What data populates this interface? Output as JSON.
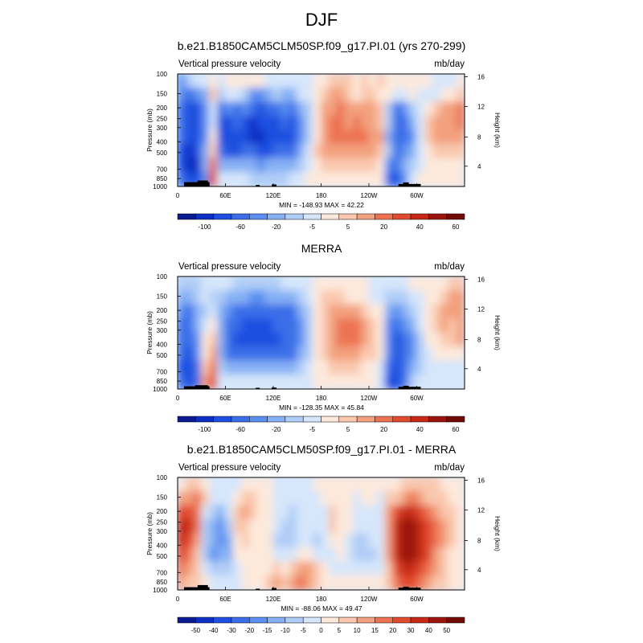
{
  "page_title": "DJF",
  "chart_data": [
    {
      "type": "heatmap",
      "title": "b.e21.B1850CAM5CLM50SP.f09_g17.PI.01 (yrs 270-299)",
      "left_label": "Vertical pressure velocity",
      "right_label": "mb/day",
      "ylabel": "Pressure (mb)",
      "ylabel_right": "Height (km)",
      "x_ticks": [
        "0",
        "60E",
        "120E",
        "180",
        "120W",
        "60W"
      ],
      "y_ticks": [
        "100",
        "150",
        "200",
        "250",
        "300",
        "400",
        "500",
        "700",
        "850",
        "1000"
      ],
      "y_ticks_right": [
        "4",
        "8",
        "12",
        "16"
      ],
      "stats": "MIN = -148.93  MAX =  42.22",
      "min": -148.93,
      "max": 42.22,
      "colorbar_labels": [
        "-100",
        "-60",
        "-20",
        "-5",
        "5",
        "20",
        "40",
        "60"
      ],
      "colorbar_colors": [
        "#0a1a90",
        "#0d2fc4",
        "#1f4fe0",
        "#3a6ee8",
        "#5b8ff0",
        "#86b0f4",
        "#b0cdf7",
        "#d6e6fb",
        "#fde9dc",
        "#f9c8ae",
        "#f3a07e",
        "#ec7352",
        "#e14a2e",
        "#c62a17",
        "#9a150b",
        "#700b05"
      ],
      "field": [
        [
          4,
          6,
          7,
          7,
          8,
          7,
          8,
          8,
          8,
          8,
          8,
          7,
          7,
          7,
          7,
          7,
          7,
          8,
          8,
          9,
          9,
          9,
          8,
          9,
          8,
          9,
          8,
          8,
          8,
          8,
          8,
          8,
          7,
          7,
          7,
          8
        ],
        [
          4,
          3,
          4,
          5,
          9,
          6,
          7,
          7,
          6,
          4,
          4,
          5,
          6,
          5,
          5,
          7,
          7,
          8,
          9,
          10,
          10,
          9,
          8,
          9,
          9,
          8,
          8,
          7,
          7,
          8,
          7,
          7,
          7,
          8,
          8,
          9
        ],
        [
          3,
          2,
          2,
          4,
          7,
          3,
          4,
          3,
          4,
          3,
          2,
          3,
          3,
          4,
          3,
          5,
          6,
          8,
          10,
          10,
          11,
          10,
          10,
          10,
          10,
          9,
          6,
          3,
          4,
          6,
          7,
          8,
          9,
          10,
          10,
          11
        ],
        [
          3,
          2,
          2,
          4,
          7,
          2,
          2,
          3,
          2,
          1,
          2,
          2,
          2,
          3,
          2,
          4,
          6,
          8,
          10,
          11,
          11,
          10,
          11,
          10,
          10,
          9,
          6,
          3,
          3,
          5,
          7,
          9,
          10,
          10,
          10,
          11
        ],
        [
          3,
          2,
          2,
          4,
          8,
          2,
          2,
          2,
          2,
          1,
          1,
          2,
          2,
          2,
          2,
          4,
          6,
          8,
          10,
          11,
          11,
          11,
          11,
          11,
          10,
          10,
          5,
          3,
          3,
          4,
          7,
          9,
          10,
          10,
          10,
          10
        ],
        [
          2,
          1,
          2,
          5,
          9,
          3,
          2,
          2,
          3,
          3,
          2,
          2,
          3,
          3,
          3,
          5,
          7,
          9,
          10,
          10,
          10,
          10,
          10,
          10,
          10,
          9,
          6,
          3,
          4,
          5,
          7,
          8,
          9,
          9,
          9,
          9
        ],
        [
          2,
          1,
          1,
          5,
          11,
          5,
          5,
          5,
          5,
          5,
          4,
          5,
          5,
          5,
          5,
          6,
          7,
          8,
          9,
          9,
          9,
          9,
          9,
          9,
          9,
          8,
          4,
          3,
          5,
          6,
          7,
          8,
          8,
          8,
          8,
          8
        ],
        [
          3,
          2,
          2,
          4,
          12,
          7,
          7,
          7,
          7,
          6,
          6,
          6,
          6,
          6,
          7,
          7,
          8,
          8,
          8,
          8,
          8,
          8,
          8,
          8,
          8,
          8,
          3,
          2,
          4,
          7,
          8,
          8,
          8,
          8,
          8,
          8
        ]
      ]
    },
    {
      "type": "heatmap",
      "title": "MERRA",
      "left_label": "Vertical pressure velocity",
      "right_label": "mb/day",
      "ylabel": "Pressure (mb)",
      "ylabel_right": "Height (km)",
      "x_ticks": [
        "0",
        "60E",
        "120E",
        "180",
        "120W",
        "60W"
      ],
      "y_ticks": [
        "100",
        "150",
        "200",
        "250",
        "300",
        "400",
        "500",
        "700",
        "850",
        "1000"
      ],
      "y_ticks_right": [
        "4",
        "8",
        "12",
        "16"
      ],
      "stats": "MIN = -128.35  MAX =  45.84",
      "min": -128.35,
      "max": 45.84,
      "colorbar_labels": [
        "-100",
        "-60",
        "-20",
        "-5",
        "5",
        "20",
        "40",
        "60"
      ],
      "colorbar_colors": [
        "#0a1a90",
        "#0d2fc4",
        "#1f4fe0",
        "#3a6ee8",
        "#5b8ff0",
        "#86b0f4",
        "#b0cdf7",
        "#d6e6fb",
        "#fde9dc",
        "#f9c8ae",
        "#f3a07e",
        "#ec7352",
        "#e14a2e",
        "#c62a17",
        "#9a150b",
        "#700b05"
      ],
      "field": [
        [
          6,
          6,
          6,
          7,
          7,
          7,
          7,
          6,
          6,
          6,
          6,
          6,
          6,
          7,
          7,
          7,
          7,
          8,
          8,
          8,
          8,
          8,
          8,
          8,
          7,
          7,
          7,
          7,
          7,
          8,
          8,
          8,
          8,
          8,
          9,
          9
        ],
        [
          5,
          5,
          6,
          7,
          6,
          6,
          5,
          5,
          5,
          4,
          4,
          5,
          5,
          5,
          5,
          6,
          7,
          8,
          9,
          9,
          9,
          8,
          8,
          8,
          7,
          7,
          6,
          6,
          6,
          7,
          7,
          8,
          8,
          9,
          10,
          10
        ],
        [
          4,
          3,
          5,
          6,
          7,
          5,
          4,
          3,
          3,
          3,
          3,
          3,
          3,
          3,
          3,
          5,
          6,
          8,
          9,
          10,
          10,
          10,
          10,
          9,
          8,
          8,
          5,
          4,
          5,
          6,
          7,
          8,
          9,
          10,
          10,
          10
        ],
        [
          3,
          3,
          5,
          7,
          8,
          5,
          3,
          3,
          2,
          2,
          2,
          2,
          3,
          3,
          3,
          4,
          6,
          8,
          9,
          10,
          11,
          11,
          11,
          10,
          9,
          8,
          4,
          3,
          4,
          5,
          7,
          8,
          9,
          10,
          9,
          10
        ],
        [
          3,
          3,
          4,
          8,
          9,
          5,
          3,
          2,
          2,
          2,
          2,
          2,
          2,
          3,
          3,
          4,
          6,
          8,
          9,
          10,
          11,
          11,
          11,
          10,
          9,
          8,
          4,
          2,
          3,
          4,
          6,
          8,
          8,
          9,
          9,
          10
        ],
        [
          3,
          2,
          4,
          8,
          10,
          5,
          3,
          3,
          3,
          3,
          3,
          3,
          3,
          3,
          3,
          5,
          6,
          8,
          9,
          10,
          10,
          10,
          10,
          9,
          9,
          8,
          4,
          2,
          3,
          4,
          6,
          7,
          8,
          8,
          8,
          8
        ],
        [
          2,
          2,
          3,
          9,
          11,
          6,
          5,
          5,
          5,
          5,
          5,
          5,
          5,
          5,
          5,
          6,
          7,
          8,
          8,
          9,
          9,
          9,
          9,
          8,
          8,
          7,
          3,
          2,
          3,
          5,
          6,
          7,
          7,
          7,
          7,
          7
        ],
        [
          3,
          2,
          3,
          10,
          12,
          7,
          7,
          7,
          7,
          7,
          7,
          7,
          7,
          7,
          7,
          7,
          7,
          8,
          8,
          8,
          8,
          8,
          8,
          8,
          8,
          7,
          2,
          2,
          3,
          6,
          7,
          7,
          7,
          7,
          7,
          7
        ]
      ]
    },
    {
      "type": "heatmap",
      "title": "b.e21.B1850CAM5CLM50SP.f09_g17.PI.01 - MERRA",
      "left_label": "Vertical pressure velocity",
      "right_label": "mb/day",
      "ylabel": "Pressure (mb)",
      "ylabel_right": "Height (km)",
      "x_ticks": [
        "0",
        "60E",
        "120E",
        "180",
        "120W",
        "60W"
      ],
      "y_ticks": [
        "100",
        "150",
        "200",
        "250",
        "300",
        "400",
        "500",
        "700",
        "850",
        "1000"
      ],
      "y_ticks_right": [
        "4",
        "8",
        "12",
        "16"
      ],
      "stats": "MIN = -88.06  MAX =  49.47",
      "min": -88.06,
      "max": 49.47,
      "colorbar_labels": [
        "-50",
        "-40",
        "-30",
        "-20",
        "-15",
        "-10",
        "-5",
        "0",
        "5",
        "10",
        "15",
        "20",
        "30",
        "40",
        "50"
      ],
      "colorbar_colors": [
        "#0a1a90",
        "#0d2fc4",
        "#1f4fe0",
        "#3a6ee8",
        "#5b8ff0",
        "#86b0f4",
        "#b0cdf7",
        "#d6e6fb",
        "#fde9dc",
        "#f9c8ae",
        "#f3a07e",
        "#ec7352",
        "#e14a2e",
        "#c62a17",
        "#9a150b",
        "#700b05"
      ],
      "field": [
        [
          8,
          9,
          9,
          8,
          7,
          7,
          7,
          7,
          8,
          8,
          8,
          8,
          7,
          7,
          7,
          7,
          7,
          8,
          8,
          8,
          8,
          8,
          8,
          8,
          8,
          8,
          8,
          8,
          9,
          9,
          9,
          9,
          9,
          8,
          8,
          8
        ],
        [
          10,
          10,
          11,
          9,
          7,
          7,
          7,
          8,
          9,
          9,
          8,
          8,
          7,
          7,
          7,
          7,
          7,
          7,
          8,
          8,
          8,
          8,
          7,
          8,
          8,
          7,
          9,
          9,
          10,
          11,
          10,
          9,
          9,
          9,
          8,
          8
        ],
        [
          12,
          12,
          11,
          7,
          6,
          5,
          7,
          9,
          10,
          9,
          8,
          8,
          7,
          7,
          6,
          7,
          7,
          7,
          7,
          9,
          8,
          8,
          7,
          7,
          7,
          7,
          10,
          12,
          13,
          13,
          12,
          11,
          10,
          9,
          9,
          8
        ],
        [
          13,
          13,
          11,
          6,
          5,
          4,
          6,
          9,
          9,
          8,
          8,
          8,
          7,
          6,
          6,
          7,
          7,
          7,
          7,
          9,
          8,
          8,
          7,
          7,
          7,
          7,
          10,
          13,
          14,
          14,
          13,
          12,
          11,
          10,
          9,
          8
        ],
        [
          13,
          12,
          10,
          6,
          5,
          4,
          5,
          8,
          9,
          8,
          8,
          8,
          6,
          6,
          6,
          7,
          7,
          6,
          7,
          8,
          8,
          7,
          6,
          6,
          7,
          7,
          10,
          13,
          14,
          14,
          13,
          12,
          11,
          10,
          9,
          8
        ],
        [
          12,
          11,
          9,
          6,
          4,
          5,
          5,
          8,
          8,
          8,
          8,
          8,
          7,
          7,
          7,
          8,
          8,
          7,
          7,
          7,
          8,
          7,
          6,
          6,
          6,
          7,
          10,
          13,
          14,
          14,
          13,
          12,
          10,
          9,
          8,
          8
        ],
        [
          11,
          10,
          9,
          7,
          6,
          6,
          6,
          7,
          8,
          8,
          8,
          8,
          9,
          8,
          9,
          10,
          10,
          9,
          8,
          7,
          7,
          7,
          7,
          7,
          7,
          7,
          9,
          12,
          13,
          13,
          12,
          11,
          10,
          9,
          8,
          8
        ],
        [
          10,
          9,
          9,
          8,
          7,
          7,
          7,
          7,
          8,
          8,
          8,
          9,
          10,
          9,
          10,
          11,
          10,
          9,
          8,
          8,
          8,
          8,
          8,
          8,
          8,
          8,
          9,
          11,
          12,
          12,
          11,
          10,
          9,
          9,
          8,
          8
        ]
      ]
    }
  ]
}
